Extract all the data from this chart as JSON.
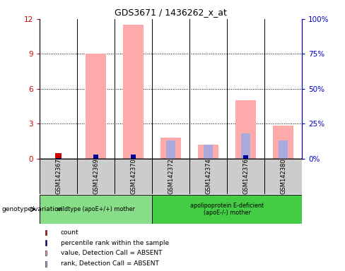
{
  "title": "GDS3671 / 1436262_x_at",
  "samples": [
    "GSM142367",
    "GSM142369",
    "GSM142370",
    "GSM142372",
    "GSM142374",
    "GSM142376",
    "GSM142380"
  ],
  "count_values": [
    0.45,
    0,
    0,
    0,
    0,
    0,
    0
  ],
  "percentile_rank_values": [
    0.28,
    2.6,
    3.1,
    0,
    0,
    2.1,
    0
  ],
  "value_absent": [
    0,
    9.0,
    11.5,
    1.8,
    1.2,
    5.0,
    2.8
  ],
  "rank_absent_pct": [
    0,
    0,
    0,
    13,
    10,
    18,
    13
  ],
  "ylim_left": [
    0,
    12
  ],
  "ylim_right": [
    0,
    100
  ],
  "yticks_left": [
    0,
    3,
    6,
    9,
    12
  ],
  "yticks_right": [
    0,
    25,
    50,
    75,
    100
  ],
  "ytick_labels_left": [
    "0",
    "3",
    "6",
    "9",
    "12"
  ],
  "ytick_labels_right": [
    "0%",
    "25%",
    "50%",
    "75%",
    "100%"
  ],
  "group1_label": "wildtype (apoE+/+) mother",
  "group2_label": "apolipoprotein E-deficient\n(apoE-/-) mother",
  "group1_indices": [
    0,
    1,
    2
  ],
  "group2_indices": [
    3,
    4,
    5,
    6
  ],
  "genotype_label": "genotype/variation",
  "legend_items": [
    {
      "label": "count",
      "color": "#cc0000"
    },
    {
      "label": "percentile rank within the sample",
      "color": "#000099"
    },
    {
      "label": "value, Detection Call = ABSENT",
      "color": "#ffaaaa"
    },
    {
      "label": "rank, Detection Call = ABSENT",
      "color": "#aaaadd"
    }
  ],
  "color_count": "#cc0000",
  "color_rank": "#000099",
  "color_value_absent": "#ffaaaa",
  "color_rank_absent": "#aaaadd",
  "bg_group1": "#88dd88",
  "bg_group2": "#44cc44",
  "left_tick_color": "#cc0000",
  "right_tick_color": "#0000cc"
}
